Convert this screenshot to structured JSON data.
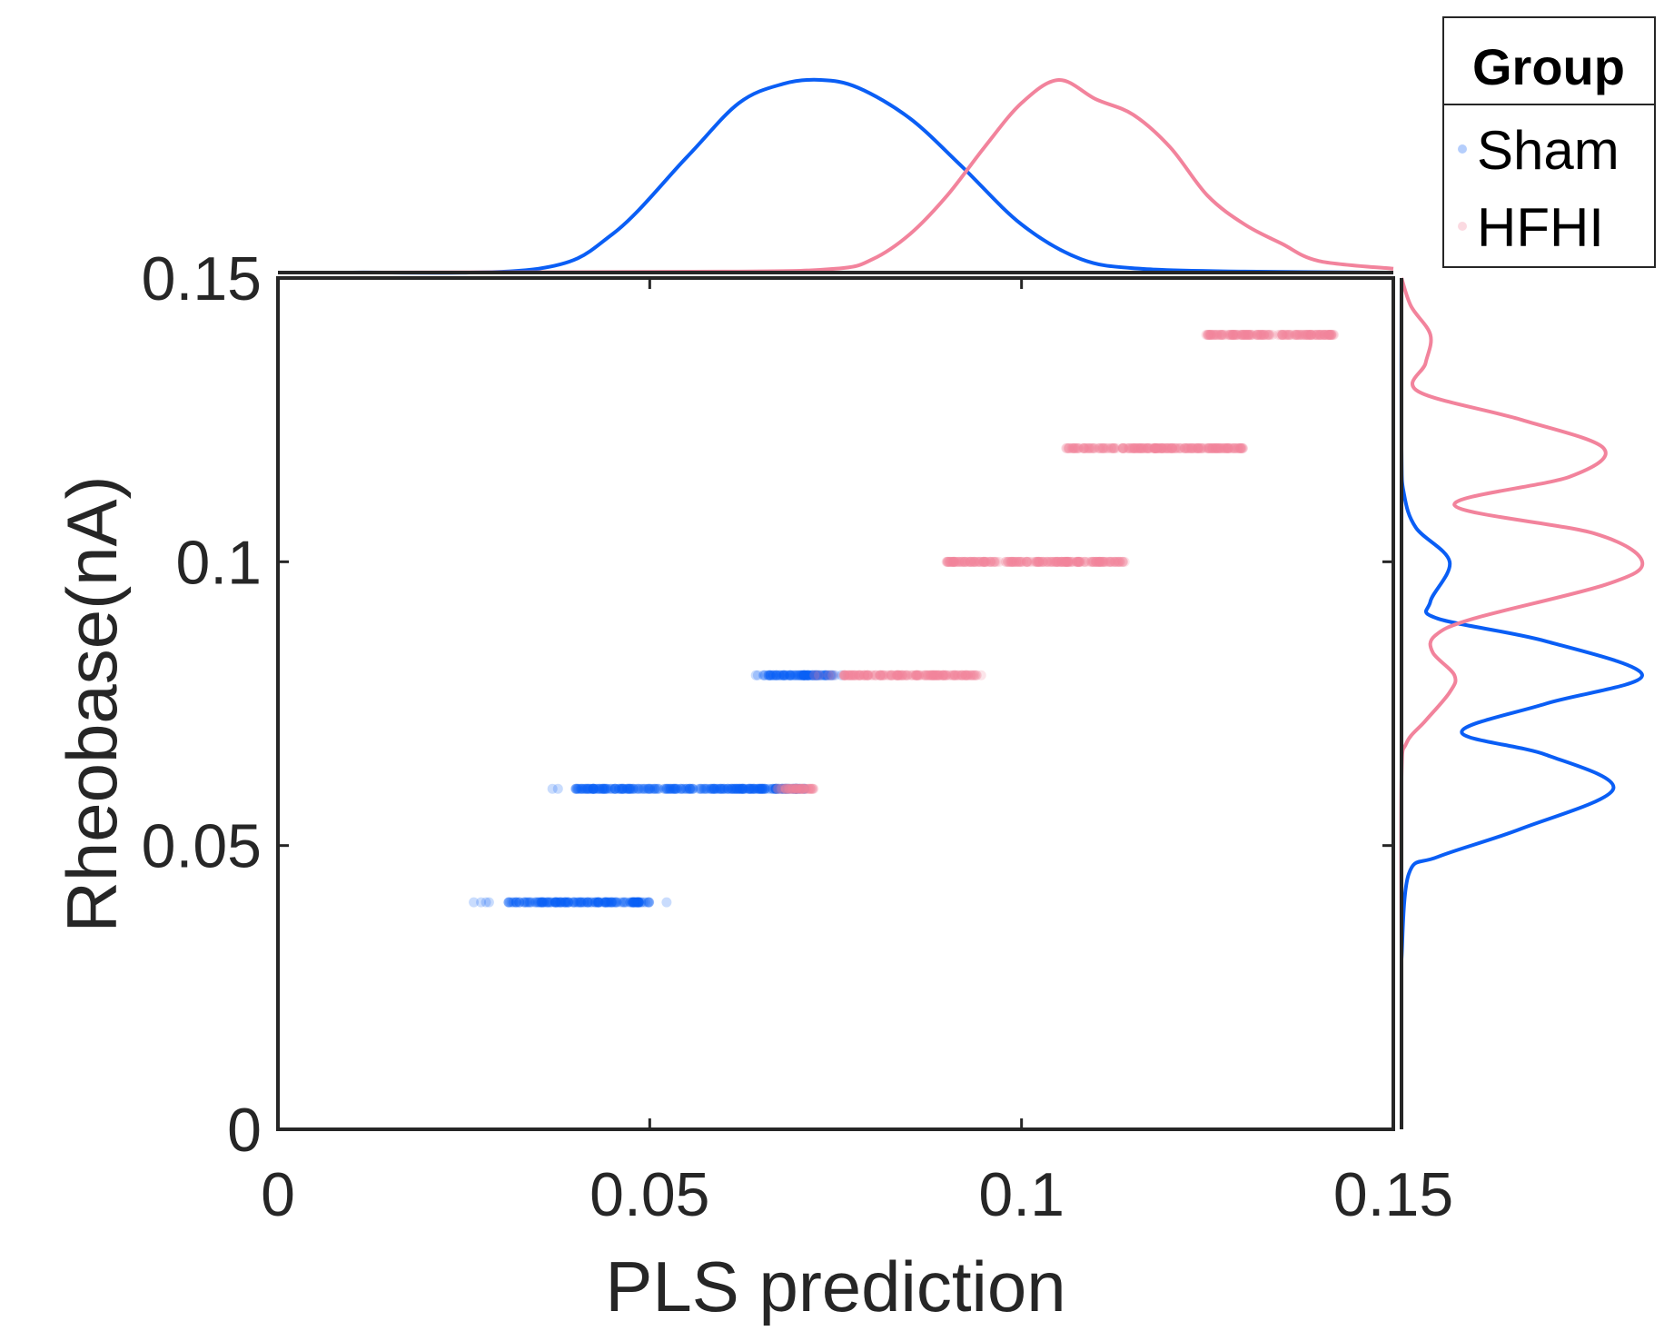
{
  "colors": {
    "sham": "#0a5ef5",
    "hfhi": "#f2839c",
    "axis": "#262626"
  },
  "chart_data": {
    "type": "scatter",
    "xlabel": "PLS prediction",
    "ylabel": "Rheobase(nA)",
    "xlim": [
      0,
      0.15
    ],
    "ylim": [
      0,
      0.15
    ],
    "xticks": [
      "0",
      "0.05",
      "0.1",
      "0.15"
    ],
    "yticks": [
      "0",
      "0.05",
      "0.1",
      "0.15"
    ],
    "grid": false,
    "legend": {
      "title": "Group",
      "position": "top-right",
      "entries": [
        "Sham",
        "HFHI"
      ]
    },
    "series": [
      {
        "name": "Sham",
        "color": "#0a5ef5",
        "clusters": [
          {
            "y": 0.04,
            "x_min": 0.022,
            "x_max": 0.054,
            "core_min": 0.031,
            "core_max": 0.05
          },
          {
            "y": 0.06,
            "x_min": 0.036,
            "x_max": 0.075,
            "core_min": 0.04,
            "core_max": 0.071
          },
          {
            "y": 0.08,
            "x_min": 0.064,
            "x_max": 0.076,
            "core_min": 0.065,
            "core_max": 0.075
          }
        ],
        "x_density": [
          [
            0.01,
            0
          ],
          [
            0.035,
            0.02
          ],
          [
            0.045,
            0.2
          ],
          [
            0.055,
            0.6
          ],
          [
            0.062,
            0.88
          ],
          [
            0.068,
            0.98
          ],
          [
            0.073,
            1.0
          ],
          [
            0.078,
            0.96
          ],
          [
            0.085,
            0.8
          ],
          [
            0.092,
            0.55
          ],
          [
            0.1,
            0.25
          ],
          [
            0.108,
            0.07
          ],
          [
            0.116,
            0.02
          ],
          [
            0.13,
            0.005
          ],
          [
            0.15,
            0
          ]
        ],
        "y_density": [
          [
            0.03,
            0
          ],
          [
            0.045,
            0.03
          ],
          [
            0.048,
            0.15
          ],
          [
            0.053,
            0.5
          ],
          [
            0.06,
            0.88
          ],
          [
            0.066,
            0.6
          ],
          [
            0.07,
            0.25
          ],
          [
            0.075,
            0.6
          ],
          [
            0.08,
            1.0
          ],
          [
            0.086,
            0.6
          ],
          [
            0.09,
            0.15
          ],
          [
            0.093,
            0.12
          ],
          [
            0.1,
            0.2
          ],
          [
            0.106,
            0.06
          ],
          [
            0.112,
            0.01
          ],
          [
            0.12,
            0
          ],
          [
            0.15,
            0
          ]
        ]
      },
      {
        "name": "HFHI",
        "color": "#f2839c",
        "clusters": [
          {
            "y": 0.06,
            "x_min": 0.067,
            "x_max": 0.073,
            "core_min": 0.068,
            "core_max": 0.072
          },
          {
            "y": 0.08,
            "x_min": 0.072,
            "x_max": 0.096,
            "core_min": 0.076,
            "core_max": 0.094
          },
          {
            "y": 0.1,
            "x_min": 0.089,
            "x_max": 0.115,
            "core_min": 0.09,
            "core_max": 0.114
          },
          {
            "y": 0.12,
            "x_min": 0.105,
            "x_max": 0.132,
            "core_min": 0.106,
            "core_max": 0.13
          },
          {
            "y": 0.14,
            "x_min": 0.124,
            "x_max": 0.148,
            "core_min": 0.125,
            "core_max": 0.142
          }
        ],
        "x_density": [
          [
            0.01,
            0
          ],
          [
            0.06,
            0.005
          ],
          [
            0.075,
            0.02
          ],
          [
            0.08,
            0.07
          ],
          [
            0.085,
            0.2
          ],
          [
            0.09,
            0.4
          ],
          [
            0.095,
            0.65
          ],
          [
            0.1,
            0.88
          ],
          [
            0.105,
            1.0
          ],
          [
            0.11,
            0.9
          ],
          [
            0.115,
            0.82
          ],
          [
            0.12,
            0.65
          ],
          [
            0.125,
            0.4
          ],
          [
            0.13,
            0.25
          ],
          [
            0.135,
            0.15
          ],
          [
            0.14,
            0.06
          ],
          [
            0.15,
            0.02
          ]
        ],
        "y_density": [
          [
            0.03,
            0
          ],
          [
            0.062,
            0.0
          ],
          [
            0.068,
            0.02
          ],
          [
            0.072,
            0.1
          ],
          [
            0.077,
            0.2
          ],
          [
            0.08,
            0.22
          ],
          [
            0.084,
            0.13
          ],
          [
            0.087,
            0.14
          ],
          [
            0.09,
            0.3
          ],
          [
            0.096,
            0.85
          ],
          [
            0.1,
            1.0
          ],
          [
            0.105,
            0.8
          ],
          [
            0.11,
            0.22
          ],
          [
            0.115,
            0.7
          ],
          [
            0.12,
            0.84
          ],
          [
            0.125,
            0.5
          ],
          [
            0.13,
            0.07
          ],
          [
            0.135,
            0.1
          ],
          [
            0.14,
            0.12
          ],
          [
            0.145,
            0.04
          ],
          [
            0.15,
            0
          ]
        ]
      }
    ]
  }
}
